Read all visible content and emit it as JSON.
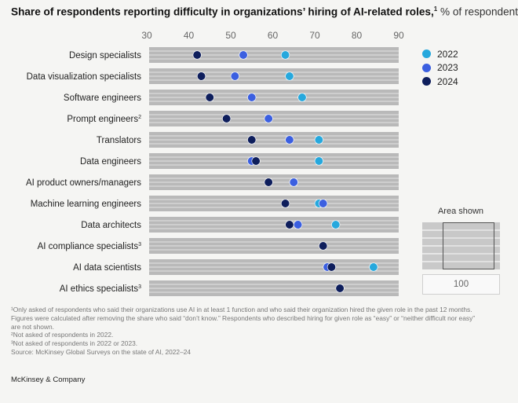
{
  "title": {
    "main": "Share of respondents reporting difficulty in organizations’ hiring of AI-related roles,",
    "sup": "1",
    "unit": " % of respondents"
  },
  "colors": {
    "2022": "#26a8dd",
    "2023": "#3b5fe0",
    "2024": "#0e1e5c",
    "bar": "#b9b9b9",
    "bar_stripe": "#e3e3e3"
  },
  "chart_data": {
    "type": "dot-plot",
    "title": "Share of respondents reporting difficulty in organizations’ hiring of AI-related roles, % of respondents",
    "xlim": [
      30,
      90
    ],
    "ticks": [
      30,
      40,
      50,
      60,
      70,
      80,
      90
    ],
    "categories": [
      {
        "label": "Design specialists",
        "sup": ""
      },
      {
        "label": "Data visualization specialists",
        "sup": ""
      },
      {
        "label": "Software engineers",
        "sup": ""
      },
      {
        "label": "Prompt engineers",
        "sup": "2"
      },
      {
        "label": "Translators",
        "sup": ""
      },
      {
        "label": "Data engineers",
        "sup": ""
      },
      {
        "label": "AI product owners/managers",
        "sup": ""
      },
      {
        "label": "Machine learning engineers",
        "sup": ""
      },
      {
        "label": "Data architects",
        "sup": ""
      },
      {
        "label": "AI compliance specialists",
        "sup": "3"
      },
      {
        "label": "AI data scientists",
        "sup": ""
      },
      {
        "label": "AI ethics specialists",
        "sup": "3"
      }
    ],
    "series": [
      {
        "name": "2022",
        "values": [
          63,
          64,
          67,
          null,
          71,
          71,
          65,
          71,
          75,
          null,
          84,
          null
        ]
      },
      {
        "name": "2023",
        "values": [
          53,
          51,
          55,
          59,
          64,
          55,
          65,
          72,
          66,
          null,
          73,
          null
        ]
      },
      {
        "name": "2024",
        "values": [
          42,
          43,
          45,
          49,
          55,
          56,
          59,
          63,
          64,
          72,
          74,
          76
        ]
      }
    ]
  },
  "legend": [
    "2022",
    "2023",
    "2024"
  ],
  "area_shown": {
    "label": "Area shown",
    "zoom_value": "100"
  },
  "footnotes": [
    "¹Only asked of respondents who said their organizations use AI in at least 1 function and who said their organization hired the given role in the past 12 months.",
    " Figures were calculated after removing the share who said “don’t know.” Respondents who described hiring for given role as “easy” or “neither difficult nor easy”",
    " are not shown.",
    "²Not asked of respondents in 2022.",
    "³Not asked of respondents in 2022 or 2023.",
    " Source: McKinsey Global Surveys on the state of AI, 2022–24"
  ],
  "brand": "McKinsey & Company"
}
